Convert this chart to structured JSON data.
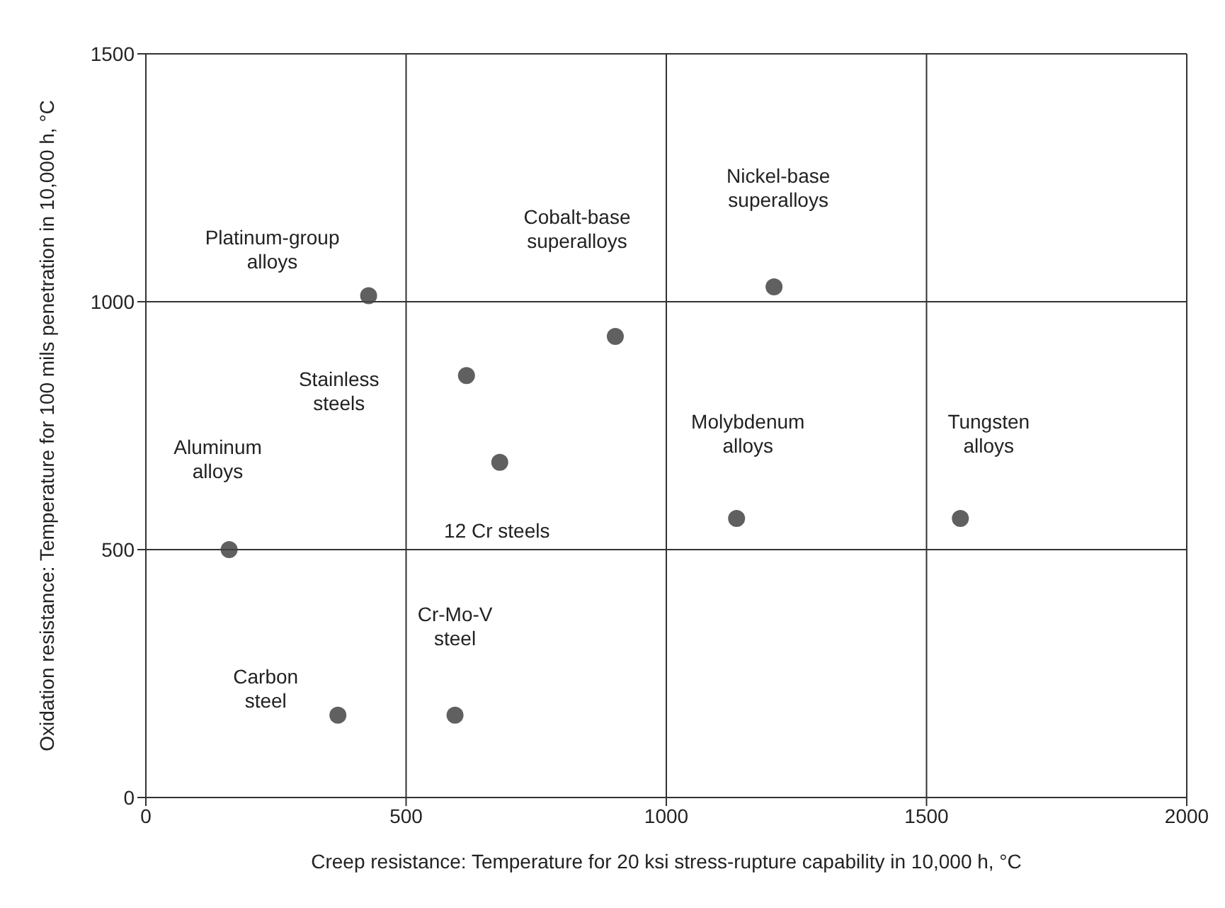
{
  "chart_data": {
    "type": "scatter",
    "xlabel": "Creep resistance: Temperature for 20 ksi stress-rupture capability in 10,000 h, °C",
    "ylabel": "Oxidation resistance: Temperature for 100 mils penetration in 10,000 h, °C",
    "x": [
      428,
      902,
      1207,
      616,
      680,
      160,
      1135,
      1565,
      369,
      594
    ],
    "values": [
      1012,
      930,
      1030,
      851,
      676,
      500,
      563,
      563,
      166,
      166
    ],
    "color": "#444444",
    "marker": "circle",
    "xlim": [
      0,
      2000
    ],
    "xticks": [
      0,
      500,
      1000,
      1500,
      2000
    ],
    "ylim": [
      0,
      1500
    ],
    "yticks": [
      0,
      500,
      1000,
      1500
    ],
    "grid": true,
    "annotations": [
      "Platinum-group\nalloys",
      "Cobalt-base\nsuperalloys",
      "Nickel-base\nsuperalloys",
      "Stainless\nsteels",
      "12 Cr steels",
      "Aluminum\nalloys",
      "Molybdenum\nalloys",
      "Tungsten\nalloys",
      "Carbon\nsteel",
      "Cr-Mo-V\nsteel"
    ]
  }
}
